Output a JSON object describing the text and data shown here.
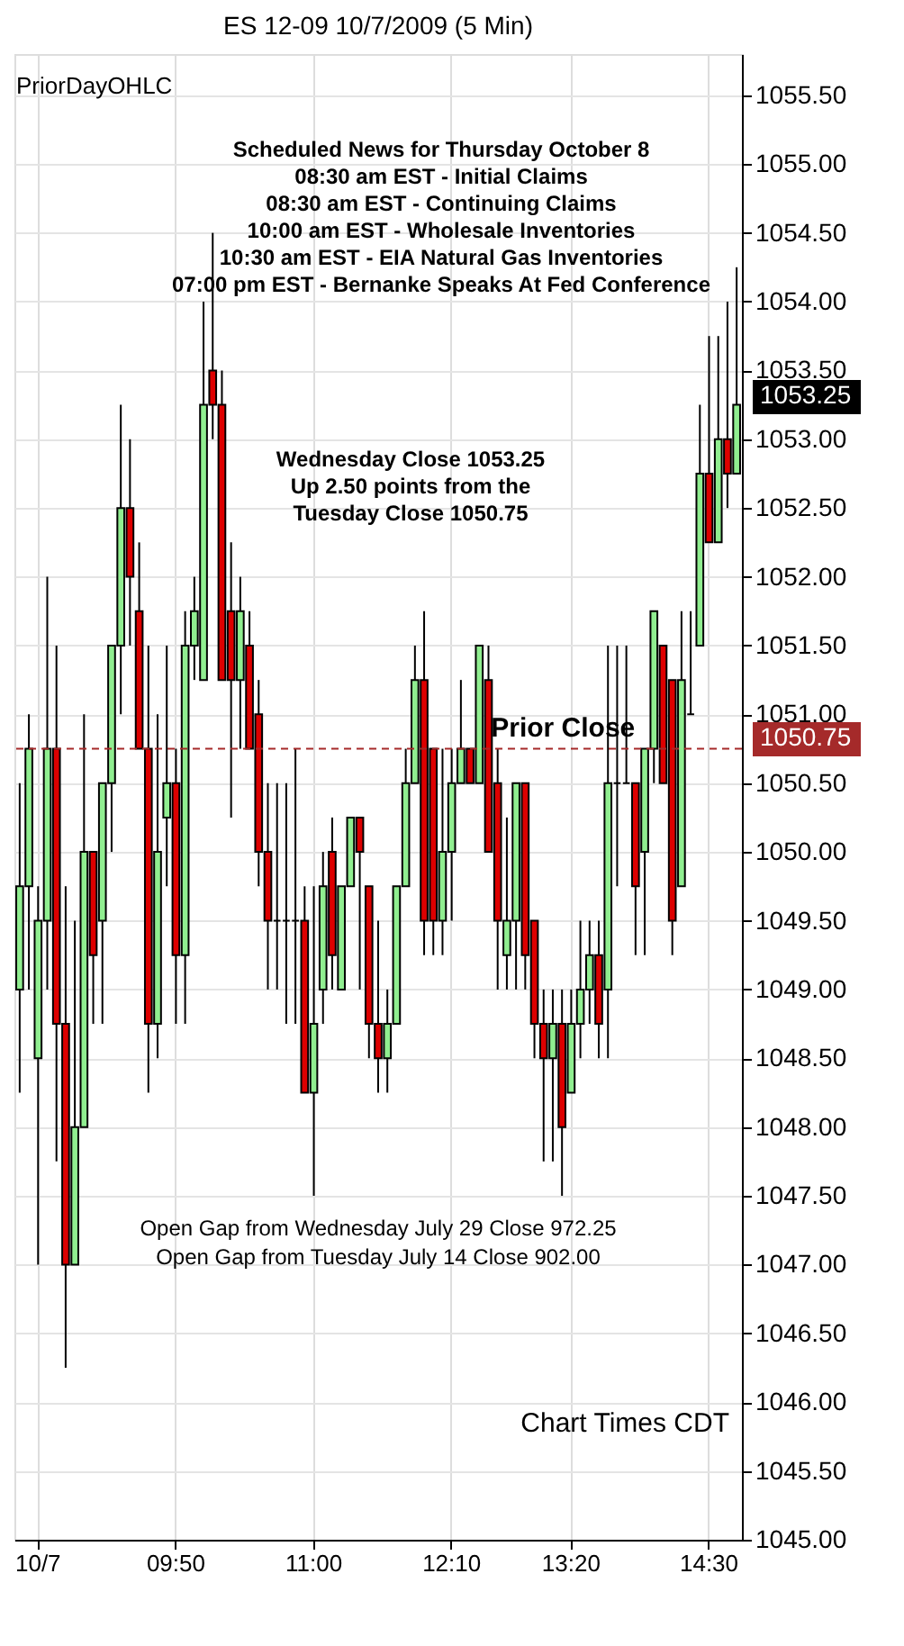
{
  "chart_data": {
    "type": "candlestick",
    "title": "ES 12-09  10/7/2009 (5 Min)",
    "categories": [
      null,
      null,
      "10/7",
      null,
      null,
      null,
      null,
      null,
      null,
      null,
      null,
      null,
      null,
      null,
      null,
      null,
      null,
      "09:50",
      null,
      null,
      null,
      null,
      null,
      null,
      null,
      null,
      null,
      null,
      null,
      null,
      null,
      null,
      "11:00",
      null,
      null,
      null,
      null,
      null,
      null,
      null,
      null,
      null,
      null,
      null,
      null,
      null,
      null,
      "12:10",
      null,
      null,
      null,
      null,
      null,
      null,
      null,
      null,
      null,
      null,
      null,
      null,
      "13:20",
      null,
      null,
      null,
      null,
      null,
      null,
      null,
      null,
      null,
      null,
      null,
      null,
      null,
      null,
      "14:30",
      null,
      null,
      null
    ],
    "ohlc": [
      [
        1049.0,
        1050.5,
        1048.25,
        1049.75
      ],
      [
        1049.75,
        1051.0,
        1049.0,
        1050.75
      ],
      [
        1048.5,
        1049.75,
        1047.0,
        1049.5
      ],
      [
        1049.5,
        1052.0,
        1049.0,
        1050.75
      ],
      [
        1050.75,
        1051.5,
        1047.75,
        1048.75
      ],
      [
        1048.75,
        1049.75,
        1046.25,
        1047.0
      ],
      [
        1047.0,
        1049.5,
        1047.0,
        1048.0
      ],
      [
        1048.0,
        1051.0,
        1048.0,
        1050.0
      ],
      [
        1050.0,
        1050.0,
        1048.75,
        1049.25
      ],
      [
        1049.5,
        1050.5,
        1048.75,
        1050.5
      ],
      [
        1050.5,
        1051.5,
        1050.0,
        1051.5
      ],
      [
        1051.5,
        1053.25,
        1051.0,
        1052.5
      ],
      [
        1052.5,
        1053.0,
        1051.5,
        1052.0
      ],
      [
        1051.75,
        1052.25,
        1050.75,
        1050.75
      ],
      [
        1050.75,
        1051.5,
        1048.25,
        1048.75
      ],
      [
        1048.75,
        1051.0,
        1048.5,
        1050.0
      ],
      [
        1050.25,
        1051.5,
        1049.75,
        1050.5
      ],
      [
        1050.5,
        1050.75,
        1048.75,
        1049.25
      ],
      [
        1049.25,
        1051.75,
        1048.75,
        1051.5
      ],
      [
        1051.5,
        1052.0,
        1051.25,
        1051.75
      ],
      [
        1051.25,
        1054.0,
        1051.25,
        1053.25
      ],
      [
        1053.5,
        1054.5,
        1053.0,
        1053.25
      ],
      [
        1053.25,
        1053.5,
        1051.25,
        1051.25
      ],
      [
        1051.75,
        1052.25,
        1050.25,
        1051.25
      ],
      [
        1051.25,
        1052.0,
        1050.75,
        1051.75
      ],
      [
        1051.5,
        1051.75,
        1050.75,
        1050.75
      ],
      [
        1051.0,
        1051.25,
        1049.75,
        1050.0
      ],
      [
        1050.0,
        1050.5,
        1049.0,
        1049.5
      ],
      [
        1049.5,
        1050.5,
        1049.0,
        1049.5
      ],
      [
        1049.5,
        1050.5,
        1048.75,
        1049.5
      ],
      [
        1049.5,
        1050.75,
        1048.75,
        1049.5
      ],
      [
        1049.5,
        1049.75,
        1048.25,
        1048.25
      ],
      [
        1048.25,
        1049.75,
        1047.5,
        1048.75
      ],
      [
        1049.0,
        1050.0,
        1048.75,
        1049.75
      ],
      [
        1050.0,
        1050.25,
        1049.0,
        1049.25
      ],
      [
        1049.0,
        1049.75,
        1049.0,
        1049.75
      ],
      [
        1049.75,
        1050.25,
        1049.75,
        1050.25
      ],
      [
        1050.25,
        1050.25,
        1049.0,
        1050.0
      ],
      [
        1049.75,
        1049.75,
        1048.5,
        1048.75
      ],
      [
        1048.75,
        1049.5,
        1048.25,
        1048.5
      ],
      [
        1048.5,
        1049.0,
        1048.25,
        1048.75
      ],
      [
        1048.75,
        1049.75,
        1048.75,
        1049.75
      ],
      [
        1049.75,
        1050.75,
        1049.75,
        1050.5
      ],
      [
        1050.5,
        1051.5,
        1050.5,
        1051.25
      ],
      [
        1051.25,
        1051.75,
        1049.25,
        1049.5
      ],
      [
        1050.75,
        1050.75,
        1049.25,
        1049.5
      ],
      [
        1049.5,
        1050.75,
        1049.25,
        1050.0
      ],
      [
        1050.0,
        1050.75,
        1049.5,
        1050.5
      ],
      [
        1050.5,
        1051.25,
        1050.5,
        1050.75
      ],
      [
        1050.75,
        1050.75,
        1050.5,
        1050.5
      ],
      [
        1050.5,
        1051.5,
        1050.5,
        1051.5
      ],
      [
        1051.25,
        1051.5,
        1050.0,
        1050.0
      ],
      [
        1050.5,
        1050.75,
        1049.0,
        1049.5
      ],
      [
        1049.25,
        1050.25,
        1049.0,
        1049.5
      ],
      [
        1049.5,
        1050.5,
        1049.0,
        1050.5
      ],
      [
        1050.5,
        1050.5,
        1049.0,
        1049.25
      ],
      [
        1049.5,
        1049.5,
        1048.5,
        1048.75
      ],
      [
        1048.75,
        1049.0,
        1047.75,
        1048.5
      ],
      [
        1048.5,
        1049.0,
        1047.75,
        1048.75
      ],
      [
        1048.75,
        1049.0,
        1047.5,
        1048.0
      ],
      [
        1048.25,
        1049.0,
        1048.25,
        1048.75
      ],
      [
        1048.75,
        1049.5,
        1048.5,
        1049.0
      ],
      [
        1049.0,
        1049.5,
        1048.75,
        1049.25
      ],
      [
        1049.25,
        1049.5,
        1048.5,
        1048.75
      ],
      [
        1049.0,
        1051.5,
        1048.5,
        1050.5
      ],
      [
        1050.5,
        1051.5,
        1049.75,
        1050.5
      ],
      [
        1050.5,
        1051.5,
        1050.5,
        1050.5
      ],
      [
        1050.5,
        1050.5,
        1049.25,
        1049.75
      ],
      [
        1050.0,
        1050.75,
        1049.25,
        1050.75
      ],
      [
        1050.75,
        1051.75,
        1050.5,
        1051.75
      ],
      [
        1051.5,
        1051.5,
        1050.5,
        1050.5
      ],
      [
        1051.25,
        1051.25,
        1049.25,
        1049.5
      ],
      [
        1049.75,
        1051.75,
        1049.75,
        1051.25
      ],
      [
        1051.0,
        1051.75,
        1051.0,
        1051.0
      ],
      [
        1051.5,
        1053.25,
        1051.5,
        1052.75
      ],
      [
        1052.75,
        1053.75,
        1052.25,
        1052.25
      ],
      [
        1052.25,
        1053.75,
        1052.25,
        1053.0
      ],
      [
        1053.0,
        1054.0,
        1052.5,
        1052.75
      ],
      [
        1052.75,
        1054.25,
        1052.75,
        1053.25
      ]
    ],
    "colors": [
      "#90ee90",
      "#90ee90",
      "#90ee90",
      "#90ee90",
      "#dd0000",
      "#dd0000",
      "#90ee90",
      "#90ee90",
      "#dd0000",
      "#90ee90",
      "#90ee90",
      "#90ee90",
      "#dd0000",
      "#dd0000",
      "#dd0000",
      "#90ee90",
      "#90ee90",
      "#dd0000",
      "#90ee90",
      "#90ee90",
      "#90ee90",
      "#dd0000",
      "#dd0000",
      "#dd0000",
      "#90ee90",
      "#dd0000",
      "#dd0000",
      "#dd0000",
      "#000000",
      "#000000",
      "#000000",
      "#dd0000",
      "#90ee90",
      "#90ee90",
      "#dd0000",
      "#90ee90",
      "#90ee90",
      "#dd0000",
      "#dd0000",
      "#dd0000",
      "#90ee90",
      "#90ee90",
      "#90ee90",
      "#90ee90",
      "#dd0000",
      "#dd0000",
      "#90ee90",
      "#90ee90",
      "#90ee90",
      "#dd0000",
      "#90ee90",
      "#dd0000",
      "#dd0000",
      "#90ee90",
      "#90ee90",
      "#dd0000",
      "#dd0000",
      "#dd0000",
      "#90ee90",
      "#dd0000",
      "#90ee90",
      "#90ee90",
      "#90ee90",
      "#dd0000",
      "#90ee90",
      "#000000",
      "#000000",
      "#dd0000",
      "#90ee90",
      "#90ee90",
      "#dd0000",
      "#dd0000",
      "#90ee90",
      "#000000",
      "#90ee90",
      "#dd0000",
      "#90ee90",
      "#dd0000",
      "#90ee90"
    ],
    "ylim": [
      1045.0,
      1055.8
    ],
    "yticks": [
      {
        "value": 1045.0,
        "label": "1045.00"
      },
      {
        "value": 1045.5,
        "label": "1045.50"
      },
      {
        "value": 1046.0,
        "label": "1046.00"
      },
      {
        "value": 1046.5,
        "label": "1046.50"
      },
      {
        "value": 1047.0,
        "label": "1047.00"
      },
      {
        "value": 1047.5,
        "label": "1047.50"
      },
      {
        "value": 1048.0,
        "label": "1048.00"
      },
      {
        "value": 1048.5,
        "label": "1048.50"
      },
      {
        "value": 1049.0,
        "label": "1049.00"
      },
      {
        "value": 1049.5,
        "label": "1049.50"
      },
      {
        "value": 1050.0,
        "label": "1050.00"
      },
      {
        "value": 1050.5,
        "label": "1050.50"
      },
      {
        "value": 1051.0,
        "label": "1051.00"
      },
      {
        "value": 1051.5,
        "label": "1051.50"
      },
      {
        "value": 1052.0,
        "label": "1052.00"
      },
      {
        "value": 1052.5,
        "label": "1052.50"
      },
      {
        "value": 1053.0,
        "label": "1053.00"
      },
      {
        "value": 1053.5,
        "label": "1053.50"
      },
      {
        "value": 1054.0,
        "label": "1054.00"
      },
      {
        "value": 1054.5,
        "label": "1054.50"
      },
      {
        "value": 1055.0,
        "label": "1055.00"
      },
      {
        "value": 1055.5,
        "label": "1055.50"
      }
    ],
    "grid": true,
    "ref_lines": [
      {
        "axis": "y",
        "value": 1050.75,
        "label": "Prior Close",
        "color": "#a52a2a",
        "line_style": "dashed"
      }
    ],
    "annotations": [
      "PriorDayOHLC",
      "Scheduled News for Thursday October 8\n08:30 am EST - Initial Claims\n08:30 am EST - Continuing Claims\n10:00 am EST - Wholesale Inventories\n10:30 am EST - EIA Natural Gas Inventories\n07:00 pm EST - Bernanke Speaks At Fed Conference",
      "Wednesday Close 1053.25\n\nUp 2.50 points from the\nTuesday Close 1050.75",
      "Open Gap from Wednesday July 29 Close 972.25\nOpen Gap from Tuesday July 14 Close 902.00",
      "Chart Times CDT",
      "1053.25",
      "1050.75"
    ]
  }
}
